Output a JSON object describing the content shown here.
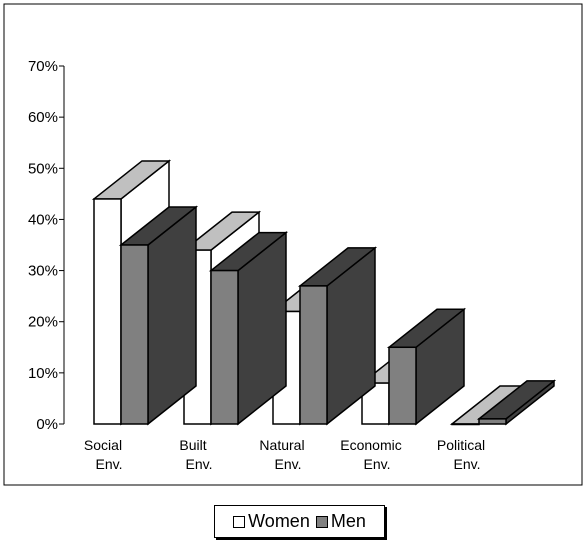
{
  "chart_data": {
    "type": "bar",
    "title": "",
    "xlabel": "",
    "ylabel": "",
    "categories": [
      [
        "Social",
        "Env."
      ],
      [
        "Built",
        "Env."
      ],
      [
        "Natural",
        "Env."
      ],
      [
        "Economic",
        "Env."
      ],
      [
        "Political",
        "Env."
      ]
    ],
    "series": [
      {
        "name": "Women",
        "values": [
          44,
          34,
          22,
          8,
          0
        ],
        "color": "#ffffff",
        "side_color": "#ffffff",
        "top_color": "#c0c0c0"
      },
      {
        "name": "Men",
        "values": [
          35,
          30,
          27,
          15,
          1
        ],
        "color": "#808080",
        "side_color": "#404040",
        "top_color": "#404040"
      }
    ],
    "ylim": [
      0,
      70
    ],
    "yticks": [
      "0%",
      "10%",
      "20%",
      "30%",
      "40%",
      "50%",
      "60%",
      "70%"
    ],
    "style": "3d-clustered-columns",
    "legend_position": "bottom"
  }
}
